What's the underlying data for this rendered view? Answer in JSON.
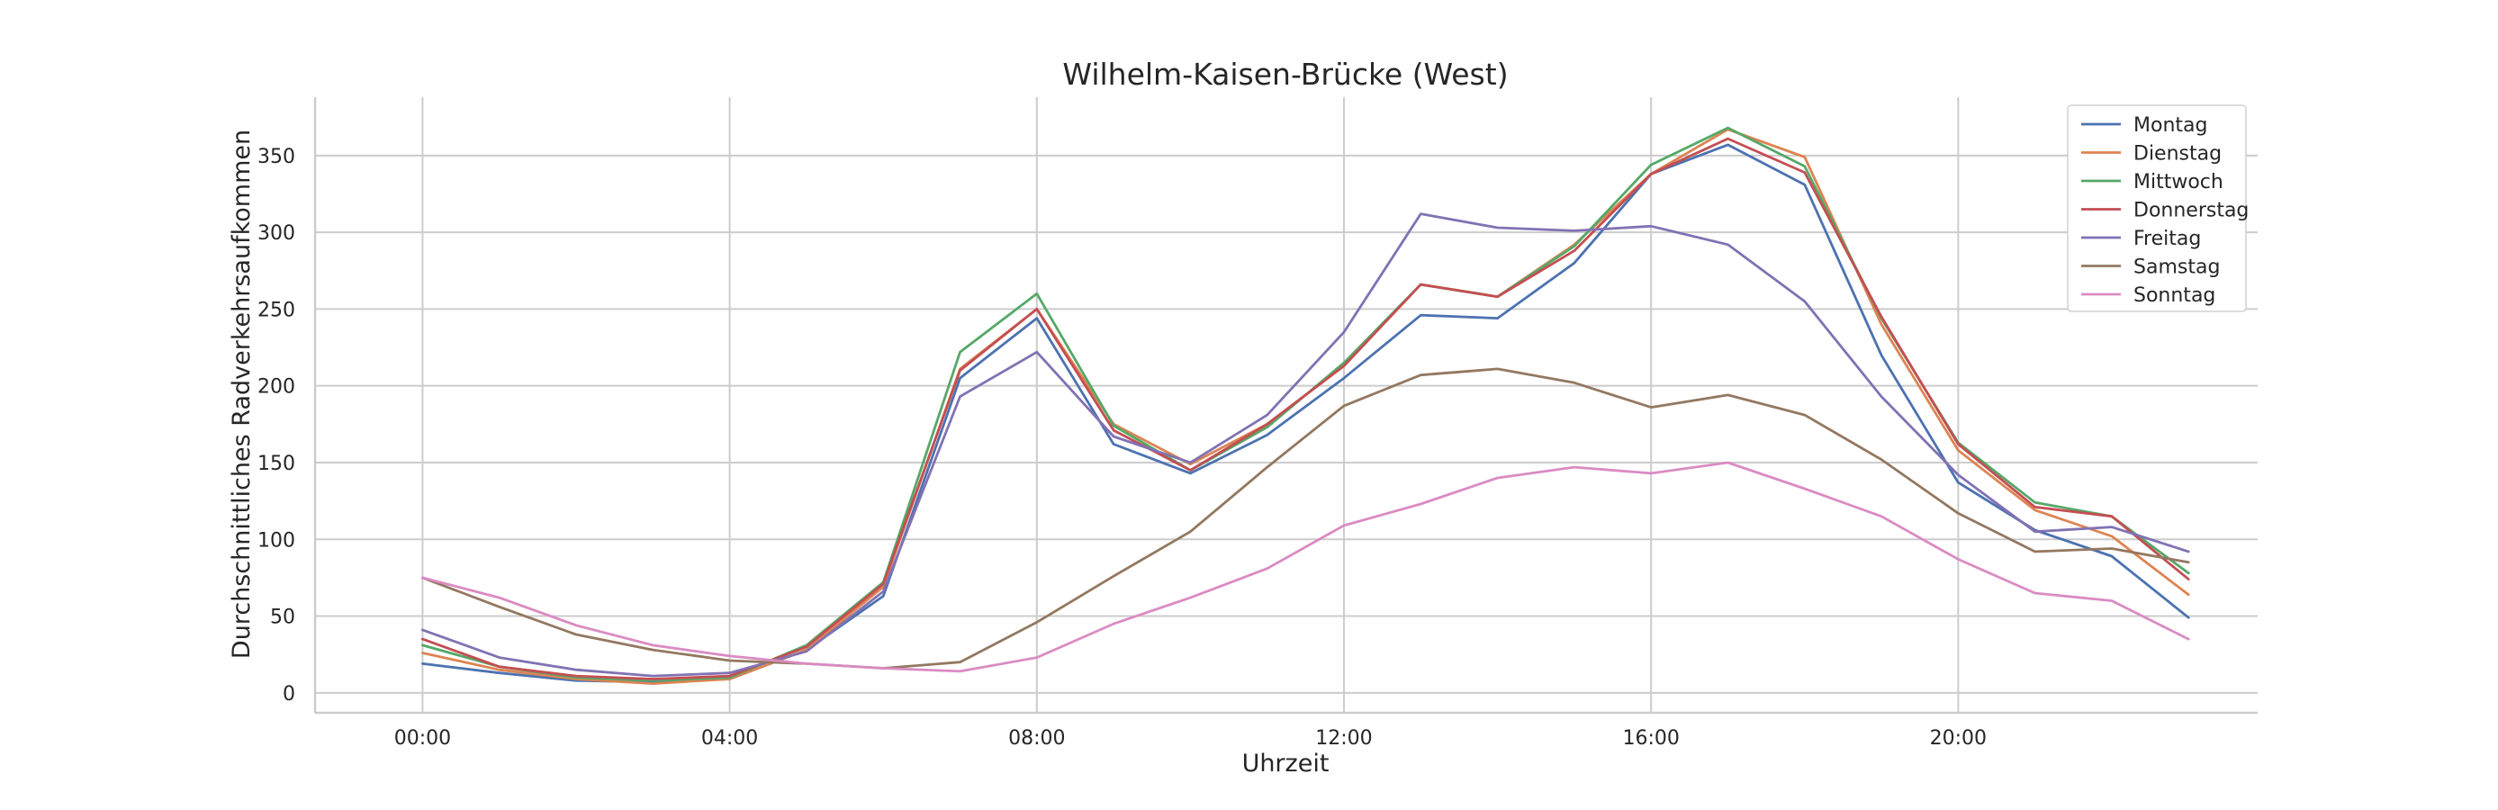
{
  "chart_data": {
    "type": "line",
    "title": "Wilhelm-Kaisen-Brücke (West)",
    "xlabel": "Uhrzeit",
    "ylabel": "Durchschnittliches Radverkehrsaufkommen",
    "x": [
      0,
      1,
      2,
      3,
      4,
      5,
      6,
      7,
      8,
      9,
      10,
      11,
      12,
      13,
      14,
      15,
      16,
      17,
      18,
      19,
      20,
      21,
      22,
      23
    ],
    "xlim": [
      -1.4,
      23.9
    ],
    "ylim": [
      -13,
      388
    ],
    "x_ticks": [
      {
        "value": 0,
        "label": "00:00"
      },
      {
        "value": 4,
        "label": "04:00"
      },
      {
        "value": 8,
        "label": "08:00"
      },
      {
        "value": 12,
        "label": "12:00"
      },
      {
        "value": 16,
        "label": "16:00"
      },
      {
        "value": 20,
        "label": "20:00"
      }
    ],
    "y_ticks": [
      0,
      50,
      100,
      150,
      200,
      250,
      300,
      350
    ],
    "grid": true,
    "legend_position": "top-right",
    "series": [
      {
        "name": "Montag",
        "color": "#4c72b0",
        "values": [
          19,
          13,
          8,
          7,
          9,
          28,
          63,
          205,
          244,
          162,
          143,
          168,
          205,
          246,
          244,
          280,
          338,
          357,
          331,
          220,
          137,
          106,
          89,
          49
        ]
      },
      {
        "name": "Dienstag",
        "color": "#dd8452",
        "values": [
          26,
          15,
          9,
          6,
          9,
          28,
          69,
          211,
          250,
          175,
          149,
          175,
          213,
          266,
          258,
          292,
          338,
          367,
          349,
          240,
          158,
          119,
          102,
          64
        ]
      },
      {
        "name": "Mittwoch",
        "color": "#55a868",
        "values": [
          31,
          17,
          10,
          8,
          10,
          31,
          72,
          222,
          260,
          174,
          145,
          173,
          215,
          266,
          258,
          291,
          344,
          368,
          343,
          244,
          163,
          124,
          115,
          78
        ]
      },
      {
        "name": "Donnerstag",
        "color": "#c44e52",
        "values": [
          35,
          17,
          11,
          9,
          11,
          30,
          71,
          210,
          250,
          171,
          145,
          175,
          213,
          266,
          258,
          288,
          338,
          361,
          339,
          245,
          162,
          121,
          115,
          74
        ]
      },
      {
        "name": "Freitag",
        "color": "#8172b3",
        "values": [
          41,
          23,
          15,
          11,
          13,
          27,
          66,
          193,
          222,
          167,
          150,
          181,
          235,
          312,
          303,
          301,
          304,
          292,
          255,
          193,
          142,
          105,
          108,
          92
        ]
      },
      {
        "name": "Samstag",
        "color": "#937860",
        "values": [
          75,
          56,
          38,
          28,
          21,
          19,
          16,
          20,
          46,
          76,
          105,
          147,
          187,
          207,
          211,
          202,
          186,
          194,
          181,
          152,
          117,
          92,
          94,
          85
        ]
      },
      {
        "name": "Sonntag",
        "color": "#da8bc3",
        "values": [
          75,
          62,
          44,
          31,
          24,
          19,
          16,
          14,
          23,
          45,
          62,
          81,
          109,
          123,
          140,
          147,
          143,
          150,
          133,
          115,
          87,
          65,
          60,
          35
        ]
      }
    ]
  }
}
